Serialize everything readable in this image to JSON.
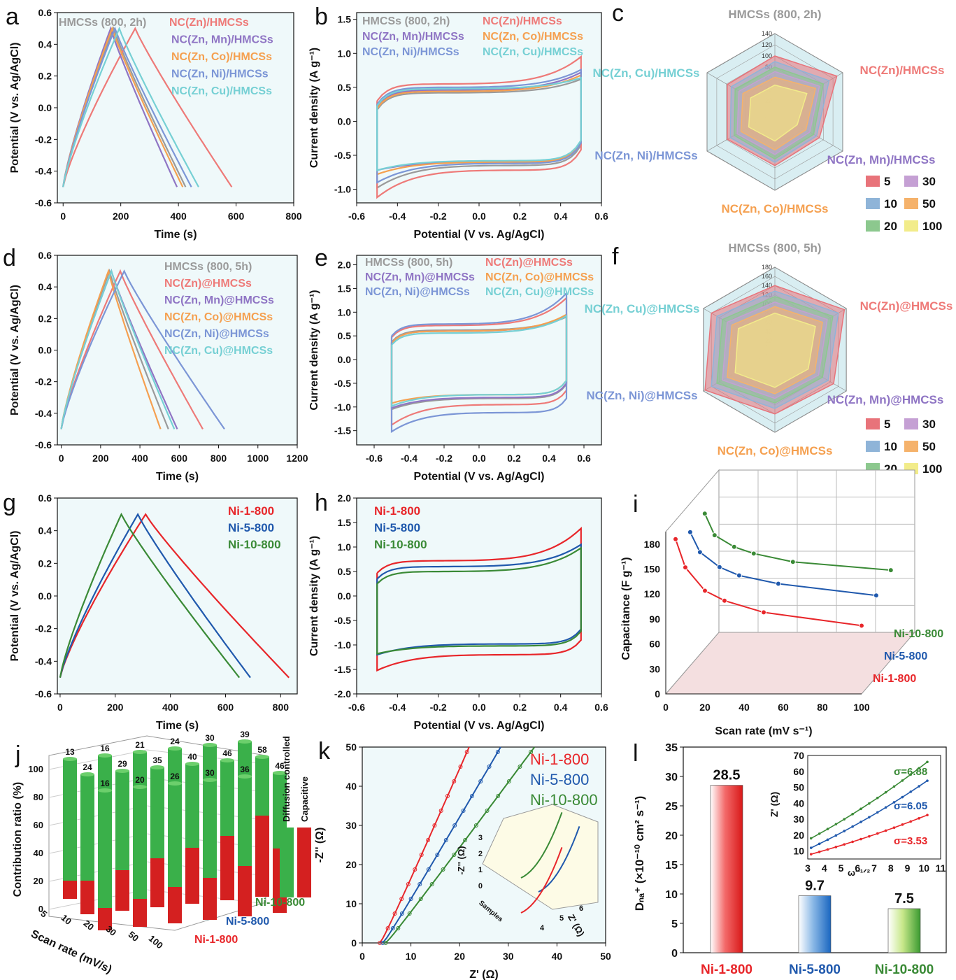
{
  "colors": {
    "gray": "#9a9a9a",
    "red": "#ee7a78",
    "purple": "#8f75c4",
    "orange": "#f5a050",
    "blue": "#7c96d6",
    "cyan": "#76d0d4",
    "ni1": "#e8262a",
    "ni5": "#2059ad",
    "ni10": "#3a8a36",
    "bg": "#eff9fa",
    "green": "#3ab04a",
    "dred": "#d42020",
    "yellow": "#f2e03c"
  },
  "chart_data": [
    {
      "panel": "a",
      "letter": "a",
      "type": "line",
      "title": "",
      "xlabel": "Time (s)",
      "ylabel": "Potential (V vs. Ag/AgCl)",
      "xlim": [
        -20,
        800
      ],
      "ylim": [
        -0.6,
        0.6
      ],
      "xticks": [
        "0",
        "200",
        "400",
        "600",
        "800"
      ],
      "yticks": [
        "-0.6",
        "-0.4",
        "-0.2",
        "0.0",
        "0.2",
        "0.4",
        "0.6"
      ],
      "series": [
        {
          "name": "HMCSs (800, 2h)",
          "color": "gray",
          "x": [
            0,
            175,
            425
          ],
          "y": [
            -0.5,
            0.5,
            -0.5
          ]
        },
        {
          "name": "NC(Zn)/HMCSs",
          "color": "red",
          "x": [
            0,
            250,
            585
          ],
          "y": [
            -0.5,
            0.5,
            -0.5
          ]
        },
        {
          "name": "NC(Zn, Mn)/HMCSs",
          "color": "purple",
          "x": [
            0,
            165,
            395
          ],
          "y": [
            -0.5,
            0.5,
            -0.5
          ]
        },
        {
          "name": "NC(Zn, Co)/HMCSs",
          "color": "orange",
          "x": [
            0,
            170,
            415
          ],
          "y": [
            -0.5,
            0.5,
            -0.5
          ]
        },
        {
          "name": "NC(Zn,  Ni)/HMCSs",
          "color": "blue",
          "x": [
            0,
            180,
            445
          ],
          "y": [
            -0.5,
            0.5,
            -0.5
          ]
        },
        {
          "name": "NC(Zn, Cu)/HMCSs",
          "color": "cyan",
          "x": [
            0,
            195,
            470
          ],
          "y": [
            -0.5,
            0.5,
            -0.5
          ]
        }
      ]
    },
    {
      "panel": "b",
      "letter": "b",
      "type": "line",
      "title": "",
      "xlabel": "Potential (V vs. Ag/AgCl)",
      "ylabel": "Current density (A g⁻¹)",
      "xlim": [
        -0.6,
        0.6
      ],
      "ylim": [
        -1.2,
        1.6
      ],
      "xticks": [
        "-0.6",
        "-0.4",
        "-0.2",
        "0.0",
        "0.2",
        "0.4",
        "0.6"
      ],
      "yticks": [
        "-1.0",
        "-0.5",
        "0.0",
        "0.5",
        "1.0",
        "1.5"
      ],
      "series": [
        {
          "name": "HMCSs (800, 2h)",
          "color": "gray",
          "upper": 0.42,
          "lower": -0.65,
          "end_top": 0.62,
          "end_bot": -0.98
        },
        {
          "name": "NC(Zn)/HMCSs",
          "color": "red",
          "upper": 0.55,
          "lower": -0.72,
          "end_top": 0.95,
          "end_bot": -1.12
        },
        {
          "name": "NC(Zn, Mn)/HMCSs",
          "color": "purple",
          "upper": 0.46,
          "lower": -0.6,
          "end_top": 0.72,
          "end_bot": -0.72
        },
        {
          "name": "NC(Zn, Co)/HMCSs",
          "color": "orange",
          "upper": 0.44,
          "lower": -0.6,
          "end_top": 0.68,
          "end_bot": -0.78
        },
        {
          "name": "NC(Zn, Ni)/HMCSs",
          "color": "blue",
          "upper": 0.5,
          "lower": -0.62,
          "end_top": 0.76,
          "end_bot": -0.9
        },
        {
          "name": "NC(Zn, Cu)/HMCSs",
          "color": "cyan",
          "upper": 0.48,
          "lower": -0.58,
          "end_top": 0.64,
          "end_bot": -0.72
        }
      ]
    },
    {
      "panel": "c",
      "letter": "c",
      "type": "radar",
      "axes": [
        "HMCSs (800, 2h)",
        "NC(Zn)/HMCSs",
        "NC(Zn, Mn)/HMCSs",
        "NC(Zn, Co)/HMCSs",
        "NC(Zn, Ni)/HMCSs",
        "NC(Zn, Cu)/HMCSs"
      ],
      "rticks": [
        "20",
        "40",
        "60",
        "80",
        "100",
        "120",
        "140"
      ],
      "rmax": 140,
      "legend_title": "",
      "legend": [
        "5",
        "10",
        "20",
        "30",
        "50",
        "100"
      ],
      "series": [
        {
          "name": "5",
          "color": "#e8737a",
          "values": [
            100,
            128,
            92,
            96,
            98,
            98
          ]
        },
        {
          "name": "10",
          "color": "#8fb4d8",
          "values": [
            90,
            112,
            86,
            90,
            92,
            90
          ]
        },
        {
          "name": "20",
          "color": "#8cc88e",
          "values": [
            80,
            100,
            80,
            84,
            84,
            82
          ]
        },
        {
          "name": "30",
          "color": "#c5a0d4",
          "values": [
            72,
            92,
            72,
            76,
            78,
            74
          ]
        },
        {
          "name": "50",
          "color": "#f5b26b",
          "values": [
            62,
            84,
            64,
            68,
            70,
            66
          ]
        },
        {
          "name": "100",
          "color": "#f2ec8a",
          "values": [
            48,
            66,
            46,
            52,
            54,
            50
          ]
        }
      ]
    },
    {
      "panel": "d",
      "letter": "d",
      "type": "line",
      "title": "",
      "xlabel": "Time (s)",
      "ylabel": "Potential (V vs. Ag/AgCl)",
      "xlim": [
        -20,
        1200
      ],
      "ylim": [
        -0.6,
        0.6
      ],
      "xticks": [
        "0",
        "200",
        "400",
        "600",
        "800",
        "1000",
        "1200"
      ],
      "yticks": [
        "-0.6",
        "-0.4",
        "-0.2",
        "0.0",
        "0.2",
        "0.4",
        "0.6"
      ],
      "series": [
        {
          "name": "HMCSs (800, 5h)",
          "color": "gray",
          "x": [
            0,
            245,
            545
          ],
          "y": [
            -0.5,
            0.5,
            -0.5
          ]
        },
        {
          "name": "NC(Zn)@HMCSs",
          "color": "red",
          "x": [
            0,
            300,
            720
          ],
          "y": [
            -0.5,
            0.5,
            -0.5
          ]
        },
        {
          "name": "NC(Zn, Mn)@HMCSs",
          "color": "purple",
          "x": [
            0,
            255,
            590
          ],
          "y": [
            -0.5,
            0.5,
            -0.5
          ]
        },
        {
          "name": "NC(Zn, Co)@HMCSs",
          "color": "orange",
          "x": [
            0,
            240,
            505
          ],
          "y": [
            -0.5,
            0.5,
            -0.5
          ]
        },
        {
          "name": "NC(Zn, Ni)@HMCSs",
          "color": "blue",
          "x": [
            0,
            320,
            830
          ],
          "y": [
            -0.5,
            0.5,
            -0.5
          ]
        },
        {
          "name": "NC(Zn, Cu)@HMCSs",
          "color": "cyan",
          "x": [
            0,
            255,
            575
          ],
          "y": [
            -0.5,
            0.5,
            -0.5
          ]
        }
      ]
    },
    {
      "panel": "e",
      "letter": "e",
      "type": "line",
      "title": "",
      "xlabel": "Potential (V vs. Ag/AgCl)",
      "ylabel": "Current density (A g⁻¹)",
      "xlim": [
        -0.7,
        0.7
      ],
      "ylim": [
        -1.8,
        2.2
      ],
      "xticks": [
        "-0.6",
        "-0.4",
        "-0.2",
        "0.0",
        "0.2",
        "0.4",
        "0.6"
      ],
      "yticks": [
        "-1.5",
        "-1.0",
        "-0.5",
        "0.0",
        "0.5",
        "1.0",
        "1.5",
        "2.0"
      ],
      "series": [
        {
          "name": "HMCSs (800, 5h)",
          "color": "gray",
          "upper": 0.62,
          "lower": -0.82,
          "end_top": 0.9,
          "end_bot": -1.05
        },
        {
          "name": "NC(Zn)@HMCSs",
          "color": "red",
          "upper": 0.72,
          "lower": -0.95,
          "end_top": 1.3,
          "end_bot": -1.38
        },
        {
          "name": "NC(Zn, Mn)@HMCSs",
          "color": "purple",
          "upper": 0.6,
          "lower": -0.8,
          "end_top": 0.92,
          "end_bot": -1.02
        },
        {
          "name": "NC(Zn, Co)@HMCSs",
          "color": "orange",
          "upper": 0.6,
          "lower": -0.74,
          "end_top": 0.95,
          "end_bot": -0.92
        },
        {
          "name": "NC(Zn, Ni)@HMCSs",
          "color": "blue",
          "upper": 0.75,
          "lower": -1.12,
          "end_top": 1.4,
          "end_bot": -1.52
        },
        {
          "name": "NC(Zn, Cu)@HMCSs",
          "color": "cyan",
          "upper": 0.56,
          "lower": -0.74,
          "end_top": 0.92,
          "end_bot": -0.98
        }
      ]
    },
    {
      "panel": "f",
      "letter": "f",
      "type": "radar",
      "axes": [
        "HMCSs (800, 5h)",
        "NC(Zn)@HMCSs",
        "NC(Zn, Mn)@HMCSs",
        "NC(Zn, Co)@HMCSs",
        "NC(Zn, Ni)@HMCSs",
        "NC(Zn, Cu)@HMCSs"
      ],
      "rticks": [
        "20",
        "40",
        "60",
        "80",
        "100",
        "120",
        "140",
        "160",
        "180"
      ],
      "rmax": 180,
      "legend_title": "",
      "legend": [
        "5",
        "10",
        "20",
        "30",
        "50",
        "100"
      ],
      "series": [
        {
          "name": "5",
          "color": "#e8737a",
          "values": [
            140,
            175,
            148,
            140,
            176,
            160
          ]
        },
        {
          "name": "10",
          "color": "#8fb4d8",
          "values": [
            128,
            160,
            134,
            128,
            160,
            146
          ]
        },
        {
          "name": "20",
          "color": "#8cc88e",
          "values": [
            116,
            146,
            120,
            116,
            146,
            132
          ]
        },
        {
          "name": "30",
          "color": "#c5a0d4",
          "values": [
            104,
            132,
            110,
            106,
            132,
            120
          ]
        },
        {
          "name": "50",
          "color": "#f5b26b",
          "values": [
            94,
            120,
            100,
            96,
            120,
            108
          ]
        },
        {
          "name": "100",
          "color": "#f2ec8a",
          "values": [
            80,
            102,
            84,
            82,
            100,
            92
          ]
        }
      ]
    },
    {
      "panel": "g",
      "letter": "g",
      "type": "line",
      "title": "",
      "xlabel": "Time (s)",
      "ylabel": "Potential (V vs. Ag/AgCl)",
      "xlim": [
        -10,
        860
      ],
      "ylim": [
        -0.6,
        0.6
      ],
      "xticks": [
        "0",
        "200",
        "400",
        "600",
        "800"
      ],
      "yticks": [
        "-0.6",
        "-0.4",
        "-0.2",
        "0.0",
        "0.2",
        "0.4",
        "0.6"
      ],
      "series": [
        {
          "name": "Ni-1-800",
          "color": "ni1",
          "x": [
            0,
            310,
            830
          ],
          "y": [
            -0.5,
            0.5,
            -0.5
          ]
        },
        {
          "name": "Ni-5-800",
          "color": "ni5",
          "x": [
            0,
            282,
            690
          ],
          "y": [
            -0.5,
            0.5,
            -0.5
          ]
        },
        {
          "name": "Ni-10-800",
          "color": "ni10",
          "x": [
            0,
            222,
            650
          ],
          "y": [
            -0.5,
            0.5,
            -0.5
          ]
        }
      ]
    },
    {
      "panel": "h",
      "letter": "h",
      "type": "line",
      "title": "",
      "xlabel": "Potential (V vs. Ag/AgCl)",
      "ylabel": "Current density (A g⁻¹)",
      "xlim": [
        -0.6,
        0.6
      ],
      "ylim": [
        -2.0,
        2.0
      ],
      "xticks": [
        "-0.6",
        "-0.4",
        "-0.2",
        "0.0",
        "0.2",
        "0.4",
        "0.6"
      ],
      "yticks": [
        "-2.0",
        "-1.5",
        "-1.0",
        "-0.5",
        "0.0",
        "0.5",
        "1.0",
        "1.5",
        "2.0"
      ],
      "series": [
        {
          "name": "Ni-1-800",
          "color": "ni1",
          "upper": 0.72,
          "lower": -1.2,
          "end_top": 1.38,
          "end_bot": -1.52
        },
        {
          "name": "Ni-5-800",
          "color": "ni5",
          "upper": 0.6,
          "lower": -0.98,
          "end_top": 1.05,
          "end_bot": -1.2
        },
        {
          "name": "Ni-10-800",
          "color": "ni10",
          "upper": 0.5,
          "lower": -1.02,
          "end_top": 0.98,
          "end_bot": -1.18
        }
      ]
    },
    {
      "panel": "i",
      "letter": "i",
      "type": "line",
      "title": "",
      "xlabel": "Scan rate (mV s⁻¹)",
      "ylabel": "Capacitance (F g⁻¹)",
      "xlim": [
        0,
        100
      ],
      "ylim": [
        0,
        195
      ],
      "xticks": [
        "0",
        "20",
        "40",
        "60",
        "80",
        "100"
      ],
      "yticks": [
        "0",
        "30",
        "60",
        "90",
        "120",
        "150",
        "180"
      ],
      "x": [
        5,
        10,
        20,
        30,
        50,
        100
      ],
      "series": [
        {
          "name": "Ni-1-800",
          "color": "ni1",
          "values": [
            186,
            152,
            124,
            112,
            98,
            82
          ]
        },
        {
          "name": "Ni-5-800",
          "color": "ni5",
          "values": [
            174,
            150,
            132,
            122,
            112,
            98
          ]
        },
        {
          "name": "Ni-10-800",
          "color": "ni10",
          "values": [
            176,
            150,
            136,
            128,
            118,
            108
          ]
        }
      ]
    },
    {
      "panel": "j",
      "letter": "j",
      "type": "bar",
      "title": "",
      "xlabel": "Scan rate (mV/s)",
      "ylabel": "Contribution ratio (%)",
      "categories": [
        "5",
        "10",
        "20",
        "30",
        "50",
        "100"
      ],
      "yticks": [
        "0",
        "20",
        "40",
        "60",
        "80",
        "100"
      ],
      "legend": [
        "Diffusion controlled",
        "Capacitive"
      ],
      "series": [
        {
          "name": "Ni-1-800",
          "capacitive": [
            16,
            20,
            26,
            30,
            36,
            46
          ]
        },
        {
          "name": "Ni-5-800",
          "capacitive": [
            24,
            29,
            35,
            40,
            46,
            58
          ]
        },
        {
          "name": "Ni-10-800",
          "capacitive": [
            13,
            16,
            21,
            24,
            30,
            39
          ]
        }
      ]
    },
    {
      "panel": "k",
      "letter": "k",
      "type": "line",
      "title": "",
      "xlabel": "Z' (Ω)",
      "ylabel": "-Z'' (Ω)",
      "xlim": [
        0,
        50
      ],
      "ylim": [
        0,
        50
      ],
      "xticks": [
        "0",
        "10",
        "20",
        "30",
        "40",
        "50"
      ],
      "yticks": [
        "0",
        "10",
        "20",
        "30",
        "40",
        "50"
      ],
      "inset": {
        "ylabel": "-Z'' (Ω)",
        "xlabel": "Z' (Ω)",
        "depth_label": "Samples",
        "yticks": [
          "0",
          "1",
          "2",
          "3"
        ],
        "xticks": [
          "4",
          "5",
          "6"
        ]
      },
      "series": [
        {
          "name": "Ni-1-800",
          "color": "ni1",
          "x0": 3.6,
          "slope": 3.1
        },
        {
          "name": "Ni-5-800",
          "color": "ni5",
          "x0": 4.2,
          "slope": 2.3
        },
        {
          "name": "Ni-10-800",
          "color": "ni10",
          "x0": 4.8,
          "slope": 1.8
        }
      ]
    },
    {
      "panel": "l",
      "letter": "l",
      "type": "bar",
      "title": "",
      "xlabel": "",
      "ylabel": "Dₙₐ⁺ (×10⁻¹⁰ cm² s⁻¹)",
      "ylim": [
        0,
        35
      ],
      "yticks": [
        "0",
        "5",
        "10",
        "15",
        "20",
        "25",
        "30",
        "35"
      ],
      "categories": [
        "Ni-1-800",
        "Ni-5-800",
        "Ni-10-800"
      ],
      "values": [
        28.5,
        9.7,
        7.5
      ],
      "labels": [
        "28.5",
        "9.7",
        "7.5"
      ],
      "inset": {
        "xlabel": "ω⁻¹ᐟ²",
        "ylabel": "Z' (Ω)",
        "xlim": [
          3,
          11
        ],
        "ylim": [
          5,
          70
        ],
        "xticks": [
          "3",
          "4",
          "5",
          "6",
          "7",
          "8",
          "9",
          "10",
          "11"
        ],
        "yticks": [
          "10",
          "20",
          "30",
          "40",
          "50",
          "60",
          "70"
        ],
        "series": [
          {
            "label": "σ=6.88",
            "color": "ni10",
            "y0": 18,
            "slope": 6.88
          },
          {
            "label": "σ=6.05",
            "color": "ni5",
            "y0": 12,
            "slope": 6.05
          },
          {
            "label": "σ=3.53",
            "color": "ni1",
            "y0": 8,
            "slope": 3.53
          }
        ]
      }
    }
  ]
}
